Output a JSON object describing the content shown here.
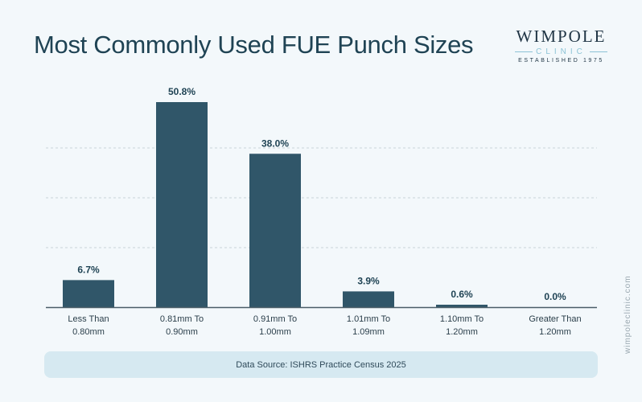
{
  "logo": {
    "name": "WIMPOLE",
    "sub": "CLINIC",
    "tagline": "ESTABLISHED 1975"
  },
  "footer": {
    "source": "Data Source: ISHRS Practice Census 2025",
    "website": "wimpoleclinic.com"
  },
  "colors": {
    "bar": "#305669",
    "text": "#1f4354",
    "grid": "#c9d3d8"
  },
  "chart_data": {
    "type": "bar",
    "title": "Most Commonly Used FUE Punch Sizes",
    "categories": [
      [
        "Less Than",
        "0.80mm"
      ],
      [
        "0.81mm To",
        "0.90mm"
      ],
      [
        "0.91mm To",
        "1.00mm"
      ],
      [
        "1.01mm To",
        "1.09mm"
      ],
      [
        "1.10mm To",
        "1.20mm"
      ],
      [
        "Greater Than",
        "1.20mm"
      ]
    ],
    "values": [
      6.7,
      50.8,
      38.0,
      3.9,
      0.6,
      0.0
    ],
    "labels": [
      "6.7%",
      "50.8%",
      "38.0%",
      "3.9%",
      "0.6%",
      "0.0%"
    ],
    "xlabel": "",
    "ylabel": "",
    "ylim": [
      0,
      50.8
    ],
    "grid": true
  }
}
